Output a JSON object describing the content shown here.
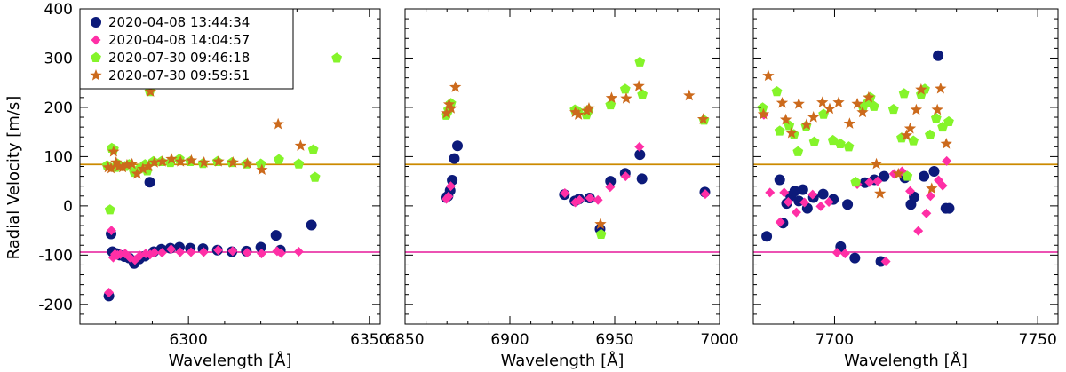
{
  "figure": {
    "ylabel": "Radial Velocity [m/s]",
    "xlabel": "Wavelength [Å]"
  },
  "colors": {
    "series": [
      "#0c1a7a",
      "#ff2fa6",
      "#85f42a",
      "#cc6a1c"
    ],
    "hline_upper": "#cc8a00",
    "hline_lower": "#ea3aa8"
  },
  "legend": {
    "entries": [
      "2020-04-08 13:44:34",
      "2020-04-08 14:04:57",
      "2020-07-30 09:46:18",
      "2020-07-30 09:59:51"
    ],
    "markers": [
      "circle",
      "diamond",
      "pentagon",
      "star"
    ]
  },
  "chart_data": [
    {
      "type": "scatter",
      "title": "",
      "xlabel": "Wavelength [Å]",
      "ylabel": "Radial Velocity [m/s]",
      "xlim": [
        6270,
        6353
      ],
      "ylim": [
        -240,
        400
      ],
      "xticks": [
        6300,
        6350
      ],
      "xtick_labels": [
        "6300",
        "6350"
      ],
      "yticks": [
        -200,
        -100,
        0,
        100,
        200,
        300,
        400
      ],
      "ytick_labels": [
        "-200",
        "-100",
        "0",
        "100",
        "200",
        "300",
        "400"
      ],
      "hlines": [
        84,
        -94
      ],
      "series": [
        {
          "name": "2020-04-08 13:44:34",
          "x": [
            6278,
            6278.6,
            6279,
            6279.4,
            6280.2,
            6281,
            6282.3,
            6283.6,
            6285,
            6286.4,
            6288,
            6289.3,
            6290.4,
            6292.5,
            6295,
            6297.5,
            6300.5,
            6304,
            6308,
            6312,
            6316,
            6320,
            6324.2,
            6325.4,
            6334
          ],
          "y": [
            -183,
            -57,
            -93,
            -96,
            -97,
            -100,
            -103,
            -106,
            -117,
            -108,
            -102,
            48,
            -93,
            -88,
            -86,
            -84,
            -86,
            -87,
            -90,
            -93,
            -92,
            -84,
            -60,
            -90,
            -39
          ]
        },
        {
          "name": "2020-04-08 14:04:57",
          "x": [
            6278,
            6278.7,
            6279.2,
            6279.7,
            6280.4,
            6281.2,
            6282.5,
            6283.8,
            6285.2,
            6286.6,
            6288.2,
            6289.4,
            6290.6,
            6292.7,
            6295.2,
            6297.7,
            6300.7,
            6304.2,
            6308.2,
            6312.2,
            6316.2,
            6320.2,
            6324.5,
            6325.6,
            6330.5
          ],
          "y": [
            -176,
            -50,
            -105,
            -98,
            -100,
            -98,
            -97,
            -105,
            -110,
            -101,
            -97,
            -99,
            -95,
            -95,
            -88,
            -94,
            -94,
            -94,
            -90,
            -92,
            -95,
            -97,
            -92,
            -96,
            -93
          ]
        },
        {
          "name": "2020-07-30 09:46:18",
          "x": [
            6277.5,
            6278.3,
            6278.8,
            6279.3,
            6279.8,
            6280.4,
            6281.2,
            6282.4,
            6283.6,
            6285,
            6286.4,
            6288,
            6288.6,
            6289.3,
            6290.3,
            6292.5,
            6295,
            6297.5,
            6300.5,
            6304,
            6308,
            6312,
            6316,
            6320,
            6325,
            6330.5,
            6334.5,
            6335,
            6341
          ],
          "y": [
            82,
            -8,
            117,
            115,
            78,
            85,
            81,
            80,
            84,
            68,
            75,
            84,
            71,
            232,
            90,
            90,
            88,
            95,
            90,
            86,
            90,
            88,
            85,
            85,
            94,
            85,
            114,
            58,
            300
          ]
        },
        {
          "name": "2020-07-30 09:59:51",
          "x": [
            6277.8,
            6278.6,
            6279.3,
            6280,
            6280.8,
            6281.8,
            6283,
            6284.4,
            6285.8,
            6287.4,
            6289,
            6289.5,
            6290.6,
            6292.8,
            6295.3,
            6297.8,
            6300.8,
            6304.3,
            6308.3,
            6312.3,
            6316.3,
            6320.3,
            6324.8,
            6331
          ],
          "y": [
            78,
            76,
            110,
            88,
            80,
            78,
            83,
            85,
            65,
            75,
            80,
            232,
            88,
            90,
            95,
            90,
            92,
            88,
            90,
            88,
            86,
            73,
            166,
            122
          ]
        }
      ]
    },
    {
      "type": "scatter",
      "title": "",
      "xlabel": "Wavelength [Å]",
      "ylabel": "",
      "xlim": [
        6850,
        7000
      ],
      "ylim": [
        -240,
        400
      ],
      "xticks": [
        6850,
        6900,
        6950,
        7000
      ],
      "xtick_labels": [
        "6850",
        "6900",
        "6950",
        "7000"
      ],
      "yticks": [
        -200,
        -100,
        0,
        100,
        200,
        300,
        400
      ],
      "ytick_labels": [],
      "hlines": [
        84,
        -94
      ],
      "series": [
        {
          "name": "2020-04-08 13:44:34",
          "x": [
            6869.5,
            6870.5,
            6871.5,
            6872.5,
            6873.5,
            6875,
            6926,
            6931,
            6933,
            6938,
            6943,
            6948,
            6955,
            6962,
            6963,
            6993
          ],
          "y": [
            17,
            20,
            31,
            52,
            96,
            122,
            23,
            10,
            14,
            16,
            -47,
            50,
            66,
            104,
            55,
            28
          ]
        },
        {
          "name": "2020-04-08 14:04:57",
          "x": [
            6869.7,
            6870.7,
            6871.8,
            6926.2,
            6931.2,
            6933.2,
            6938.2,
            6942,
            6947.8,
            6955.2,
            6961.8,
            6993.2
          ],
          "y": [
            14,
            19,
            40,
            26,
            7,
            12,
            16,
            12,
            38,
            60,
            120,
            24
          ]
        },
        {
          "name": "2020-07-30 09:46:18",
          "x": [
            6869.6,
            6870.7,
            6871.9,
            6931,
            6932.5,
            6936.5,
            6937.5,
            6943.5,
            6948,
            6955,
            6962,
            6963.2,
            6992.6
          ],
          "y": [
            184,
            195,
            208,
            195,
            192,
            185,
            195,
            -58,
            205,
            237,
            292,
            226,
            174
          ]
        },
        {
          "name": "2020-07-30 09:59:51",
          "x": [
            6869.8,
            6871,
            6872,
            6874,
            6931.2,
            6932.7,
            6936.7,
            6937.7,
            6943.2,
            6948.5,
            6955.5,
            6961.5,
            6985.5,
            6992.2
          ],
          "y": [
            188,
            206,
            198,
            241,
            190,
            185,
            193,
            198,
            -37,
            219,
            218,
            243,
            224,
            176
          ]
        }
      ]
    },
    {
      "type": "scatter",
      "title": "",
      "xlabel": "Wavelength [Å]",
      "ylabel": "",
      "xlim": [
        7680,
        7755
      ],
      "ylim": [
        -240,
        400
      ],
      "xticks": [
        7700,
        7750
      ],
      "xtick_labels": [
        "7700",
        "7750"
      ],
      "yticks": [
        -200,
        -100,
        0,
        100,
        200,
        300,
        400
      ],
      "ytick_labels": [],
      "hlines": [
        84,
        -94
      ],
      "series": [
        {
          "name": "2020-04-08 13:44:34",
          "x": [
            7683.3,
            7686.5,
            7687.3,
            7688.2,
            7689.2,
            7690.2,
            7691.2,
            7692.2,
            7693.3,
            7694.8,
            7697.2,
            7699.7,
            7701.5,
            7703.2,
            7705,
            7707.5,
            7709.8,
            7711.4,
            7712.2,
            7717.3,
            7718.8,
            7719.6,
            7722,
            7724.5,
            7725.5,
            7727.4,
            7728.2
          ],
          "y": [
            -62,
            53,
            -35,
            5,
            20,
            30,
            10,
            33,
            -5,
            17,
            24,
            13,
            -83,
            3,
            -106,
            47,
            53,
            -113,
            60,
            57,
            3,
            18,
            60,
            70,
            305,
            -5,
            -5
          ]
        },
        {
          "name": "2020-04-08 14:04:57",
          "x": [
            7682.6,
            7684.1,
            7686.6,
            7687.6,
            7688.6,
            7690.6,
            7692.6,
            7694.6,
            7696.6,
            7698.6,
            7700.6,
            7702.6,
            7705.6,
            7708.6,
            7710.6,
            7712.6,
            7714.6,
            7716.6,
            7718.6,
            7720.6,
            7722.6,
            7723.6,
            7725.6,
            7726.6,
            7727.6
          ],
          "y": [
            185,
            27,
            -33,
            27,
            8,
            -13,
            7,
            23,
            -1,
            8,
            -95,
            -97,
            44,
            48,
            50,
            -113,
            65,
            70,
            30,
            -51,
            -15,
            20,
            52,
            41,
            91
          ]
        },
        {
          "name": "2020-07-30 09:46:18",
          "x": [
            7682.3,
            7685.8,
            7686.5,
            7688.8,
            7690,
            7691,
            7693,
            7695,
            7697.3,
            7699.6,
            7701.4,
            7703.5,
            7705.2,
            7707,
            7708.2,
            7708.8,
            7709.7,
            7714.5,
            7716.5,
            7717.1,
            7717.9,
            7719.4,
            7721.3,
            7722.2,
            7723.5,
            7725,
            7726.6,
            7728.1
          ],
          "y": [
            199,
            232,
            152,
            163,
            145,
            110,
            162,
            130,
            186,
            133,
            126,
            120,
            48,
            200,
            210,
            220,
            202,
            196,
            138,
            228,
            60,
            132,
            226,
            237,
            144,
            178,
            160,
            171
          ]
        },
        {
          "name": "2020-07-30 09:59:51",
          "x": [
            7682.5,
            7683.7,
            7687.1,
            7688,
            7689.4,
            7691.2,
            7693.1,
            7694.8,
            7697,
            7698.8,
            7701,
            7703.7,
            7705.6,
            7706.9,
            7708.4,
            7710.3,
            7711.2,
            7715.7,
            7717.7,
            7718.6,
            7720.1,
            7721.3,
            7723.9,
            7725.3,
            7726.1,
            7727.5
          ],
          "y": [
            186,
            264,
            209,
            175,
            148,
            207,
            165,
            180,
            210,
            197,
            210,
            167,
            207,
            190,
            220,
            85,
            25,
            65,
            143,
            157,
            195,
            236,
            35,
            195,
            238,
            126
          ]
        }
      ]
    }
  ]
}
